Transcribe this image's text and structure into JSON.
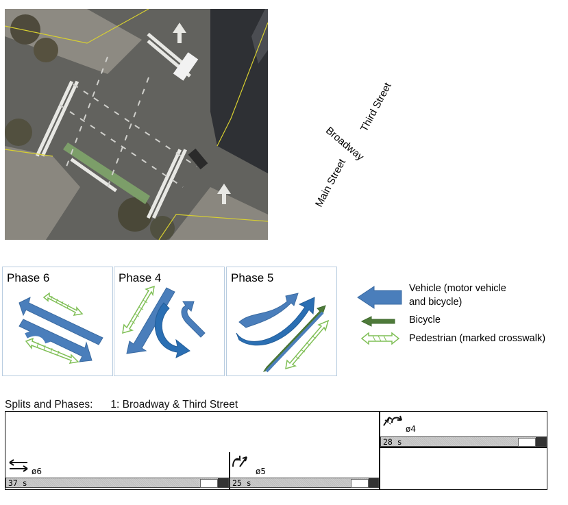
{
  "streets": {
    "main": "Main Street",
    "broadway": "Broadway",
    "third": "Third Street"
  },
  "phases": [
    {
      "title": "Phase 6"
    },
    {
      "title": "Phase 4"
    },
    {
      "title": "Phase 5"
    }
  ],
  "legend": [
    {
      "line1": "Vehicle (motor vehicle",
      "line2": "and bicycle)",
      "icon": "vehicle-arrow-icon"
    },
    {
      "line1": "Bicycle",
      "icon": "bicycle-arrow-icon"
    },
    {
      "line1": "Pedestrian (marked crosswalk)",
      "icon": "pedestrian-arrow-icon"
    }
  ],
  "splits": {
    "heading": "Splits and Phases:",
    "intersection": "1: Broadway & Third Street",
    "phases": [
      {
        "label": "ø6",
        "seconds": "37 s"
      },
      {
        "label": "ø5",
        "seconds": "25 s"
      },
      {
        "label": "ø4",
        "seconds": "28 s"
      }
    ]
  },
  "colors": {
    "vehicle": "#4a7ebb",
    "vehicle_outline": "#3a6aa0",
    "bicycle": "#4e7a3a",
    "pedestrian_outline": "#7fbf55",
    "phase_border": "#b8cce0"
  }
}
